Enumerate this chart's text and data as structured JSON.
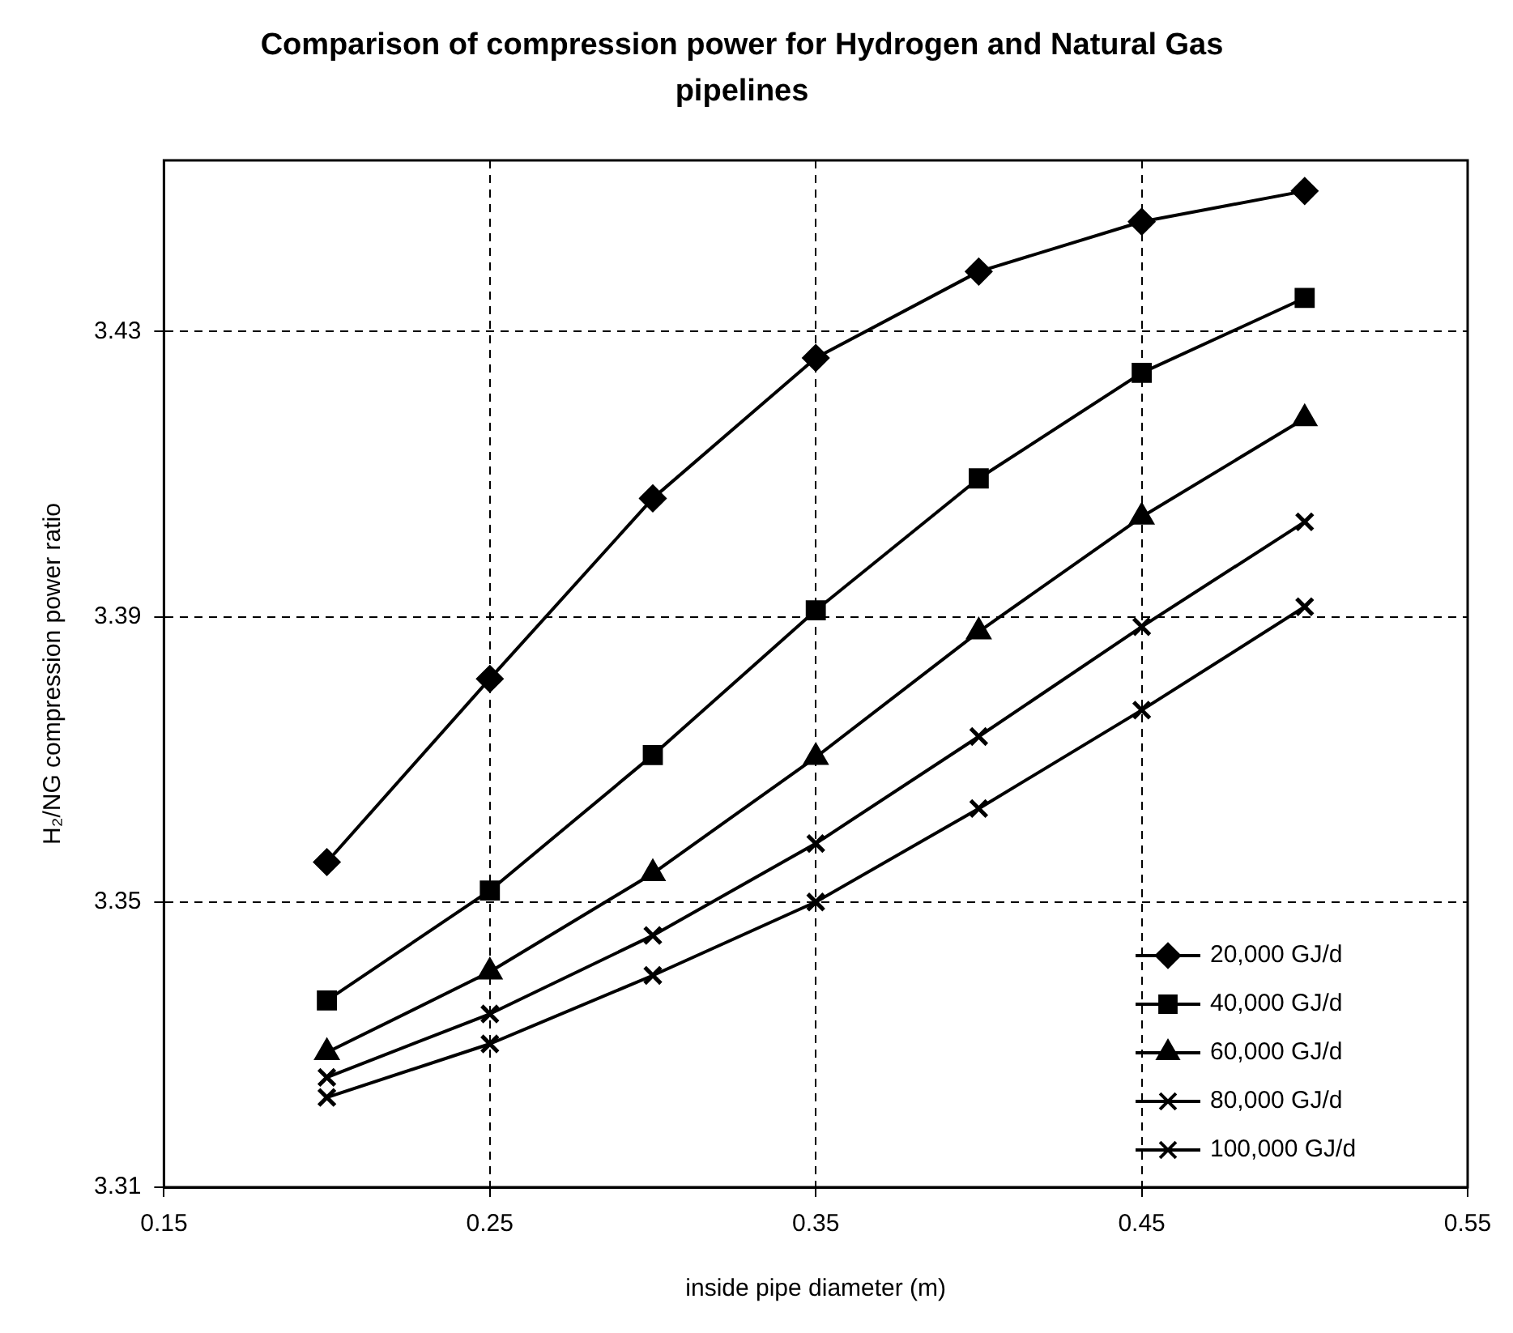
{
  "chart_data": {
    "type": "line",
    "title": "Comparison of compression power for Hydrogen and Natural Gas pipelines",
    "xlabel": "inside pipe diameter (m)",
    "ylabel": "H₂/NG compression power ratio",
    "x": [
      0.2,
      0.25,
      0.3,
      0.35,
      0.4,
      0.45,
      0.5
    ],
    "series": [
      {
        "name": "20,000 GJ/d",
        "color": "#000000",
        "marker": "diamond",
        "values": [
          3.3556,
          3.3813,
          3.4066,
          3.4263,
          3.4384,
          3.4454,
          3.4497
        ]
      },
      {
        "name": "40,000 GJ/d",
        "color": "#000000",
        "marker": "square",
        "values": [
          3.3362,
          3.3516,
          3.3706,
          3.3909,
          3.4094,
          3.4242,
          3.4347
        ]
      },
      {
        "name": "60,000 GJ/d",
        "color": "#000000",
        "marker": "triangle",
        "values": [
          3.3289,
          3.3402,
          3.354,
          3.3703,
          3.3879,
          3.404,
          3.4178
        ]
      },
      {
        "name": "80,000 GJ/d",
        "color": "#000000",
        "marker": "cross",
        "values": [
          3.3254,
          3.3343,
          3.3453,
          3.3582,
          3.3732,
          3.3886,
          3.4033
        ]
      },
      {
        "name": "100,000 GJ/d",
        "color": "#000000",
        "marker": "cross",
        "values": [
          3.3226,
          3.3301,
          3.3397,
          3.35,
          3.3631,
          3.3769,
          3.3914
        ]
      }
    ],
    "xlim": [
      0.15,
      0.55
    ],
    "xticks": [
      0.15,
      0.25,
      0.35,
      0.45,
      0.55
    ],
    "ylim": [
      3.31,
      3.454
    ],
    "yticks": [
      3.31,
      3.35,
      3.39,
      3.43
    ],
    "grid": true,
    "legend": "bottom right",
    "line_style": "solid"
  }
}
